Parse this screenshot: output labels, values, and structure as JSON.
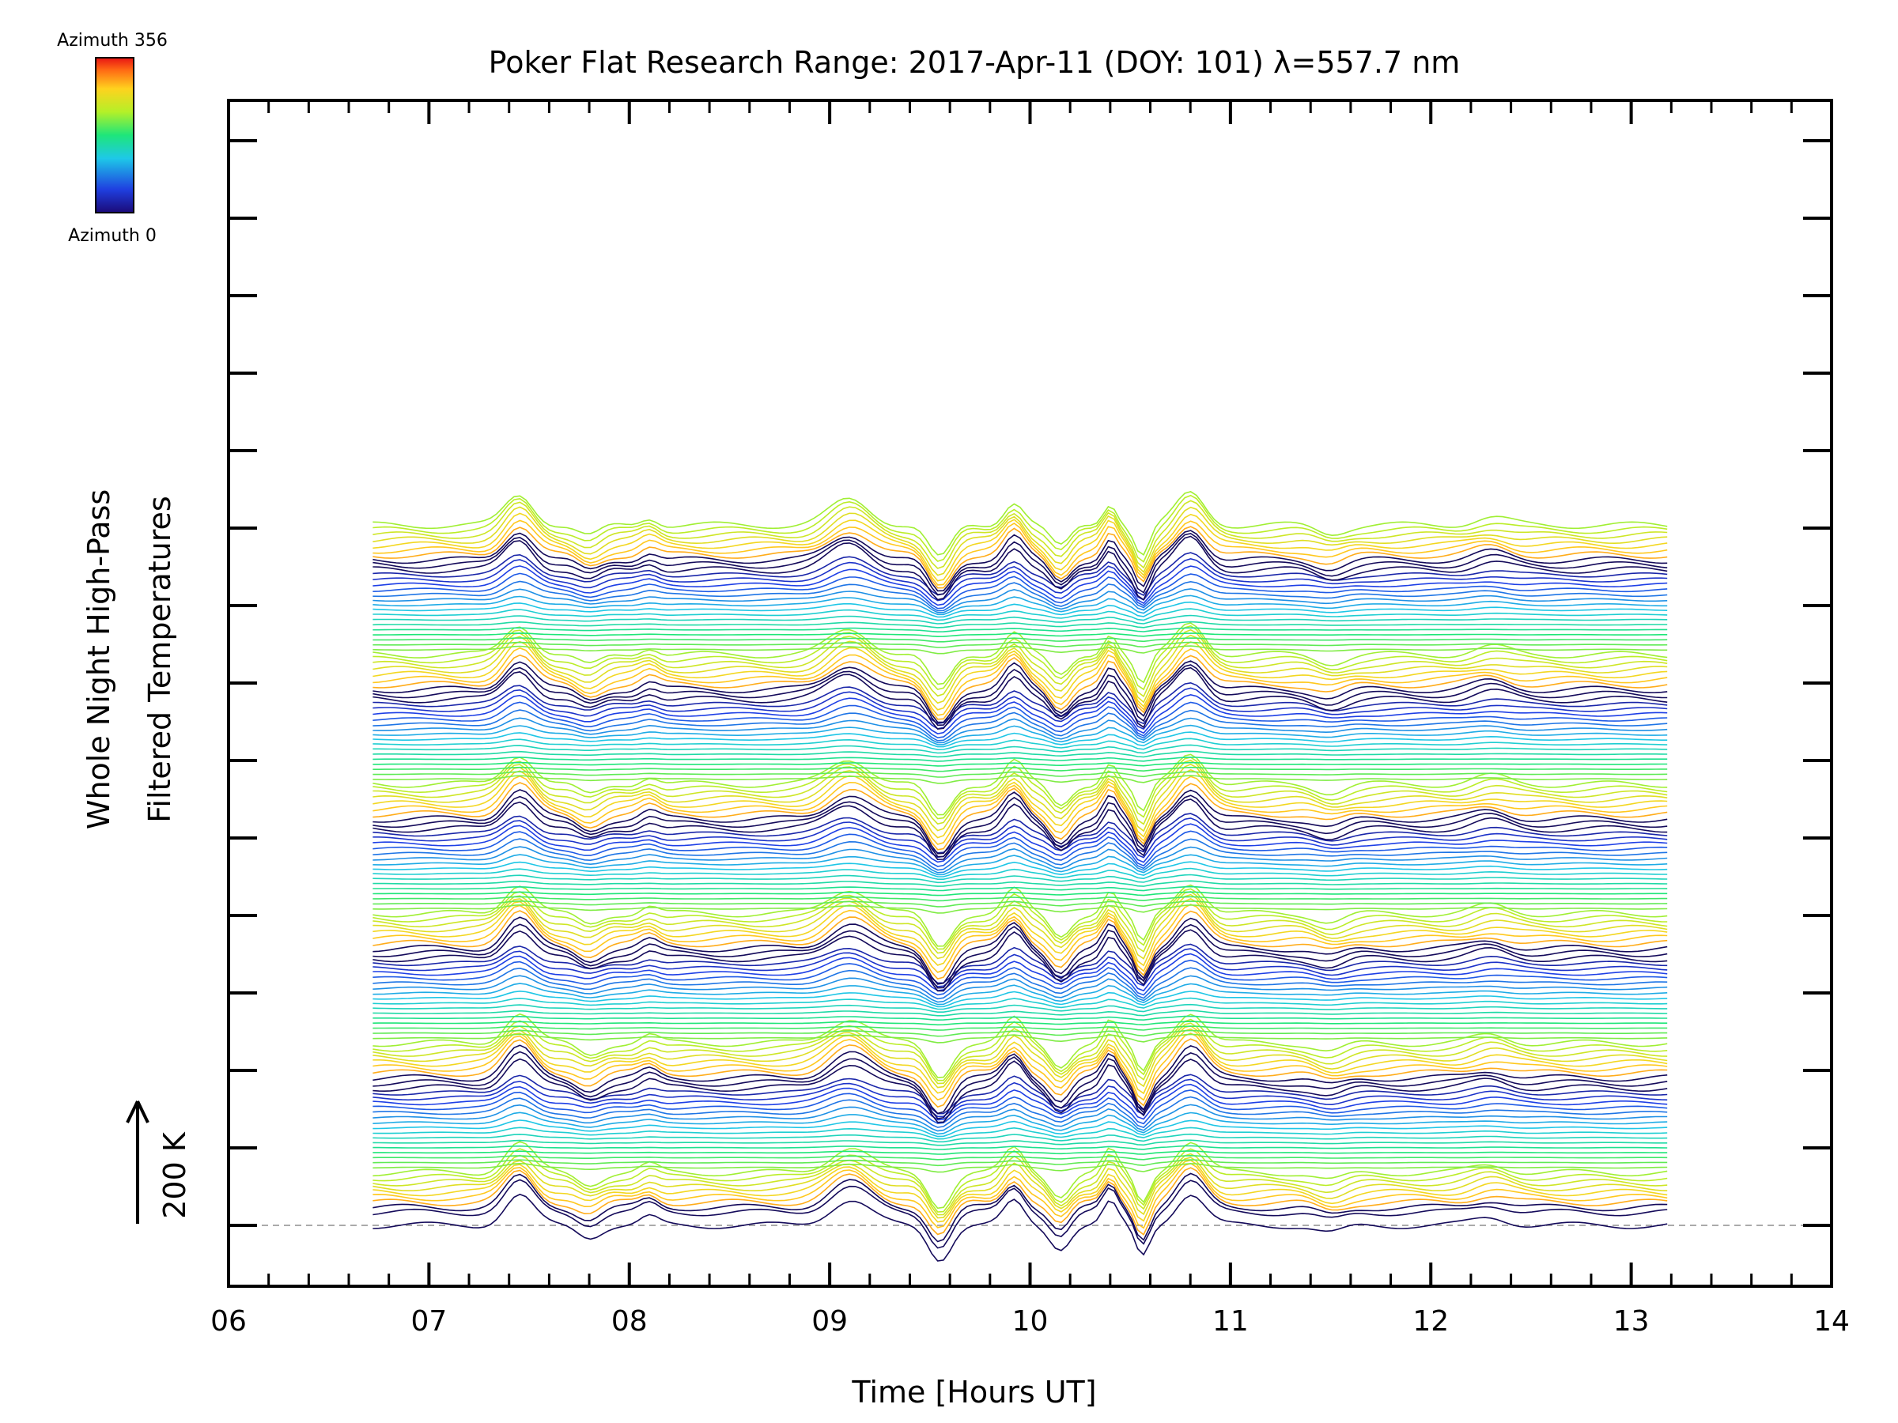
{
  "chart_data": {
    "type": "line",
    "title": "Poker Flat Research Range: 2017-Apr-11 (DOY: 101) λ=557.7 nm",
    "xlabel": "Time [Hours UT]",
    "ylabel_line1": "Whole Night High-Pass",
    "ylabel_line2": "Filtered Temperatures",
    "scale_label": "200 K",
    "xlim": [
      6,
      14
    ],
    "x_tick_labels": [
      "06",
      "07",
      "08",
      "09",
      "10",
      "11",
      "12",
      "13",
      "14"
    ],
    "colorbar": {
      "top_label": "Azimuth 356",
      "bottom_label": "Azimuth 0",
      "colormap": "rainbow"
    },
    "x_range_data": [
      6.72,
      13.18
    ],
    "n_traces": 140,
    "grid": false,
    "baseline_dashed": true,
    "features": [
      {
        "t": 7.45,
        "amp": 38,
        "w": 0.1
      },
      {
        "t": 7.8,
        "amp": -14,
        "w": 0.08
      },
      {
        "t": 8.1,
        "amp": 10,
        "w": 0.06
      },
      {
        "t": 9.1,
        "amp": 32,
        "w": 0.14
      },
      {
        "t": 9.55,
        "amp": -42,
        "w": 0.08
      },
      {
        "t": 9.92,
        "amp": 30,
        "w": 0.07
      },
      {
        "t": 10.15,
        "amp": -28,
        "w": 0.07
      },
      {
        "t": 10.4,
        "amp": 28,
        "w": 0.05
      },
      {
        "t": 10.56,
        "amp": -38,
        "w": 0.05
      },
      {
        "t": 10.8,
        "amp": 40,
        "w": 0.1
      },
      {
        "t": 11.5,
        "amp": -10,
        "w": 0.1
      },
      {
        "t": 12.3,
        "amp": 10,
        "w": 0.12
      }
    ]
  }
}
